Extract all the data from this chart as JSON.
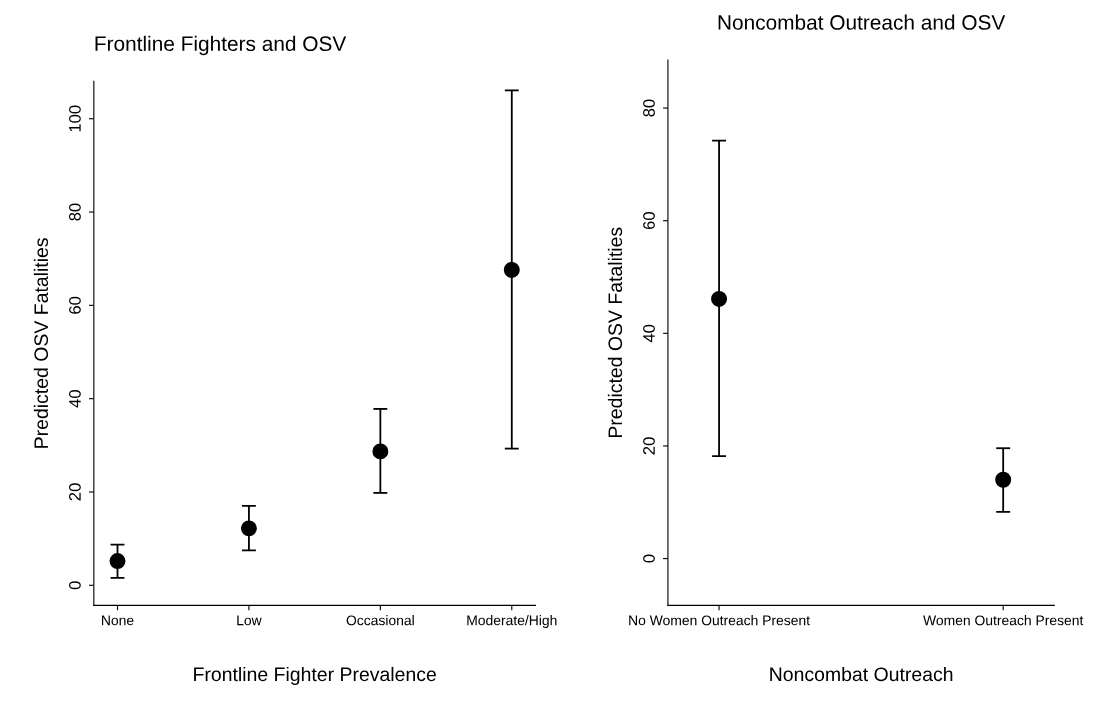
{
  "chart_data": [
    {
      "type": "scatter",
      "title": "Frontline Fighters and OSV",
      "xlabel": "Frontline Fighter Prevalence",
      "ylabel": "Predicted OSV Fatalities",
      "categories": [
        "None",
        "Low",
        "Occasional",
        "Moderate/High"
      ],
      "values": [
        5.2,
        12.2,
        28.7,
        67.6
      ],
      "errors": [
        [
          1.6,
          8.7
        ],
        [
          7.5,
          17.0
        ],
        [
          19.8,
          37.8
        ],
        [
          29.3,
          106.1
        ]
      ],
      "color": "#000000",
      "marker": "circle",
      "ylim": [
        -4.3,
        108
      ],
      "yticks": [
        0,
        20,
        40,
        60,
        80,
        100
      ],
      "grid": false,
      "legend": false
    },
    {
      "type": "scatter",
      "title": "Noncombat Outreach and OSV",
      "xlabel": "Noncombat Outreach",
      "ylabel": "Predicted OSV Fatalities",
      "categories": [
        "No Women Outreach Present",
        "Women Outreach Present"
      ],
      "values": [
        46.1,
        14.0
      ],
      "errors": [
        [
          18.2,
          74.2
        ],
        [
          8.3,
          19.6
        ]
      ],
      "color": "#000000",
      "marker": "circle",
      "ylim": [
        -8.3,
        88.5
      ],
      "yticks": [
        0,
        20,
        40,
        60,
        80
      ],
      "grid": false,
      "legend": false
    }
  ]
}
